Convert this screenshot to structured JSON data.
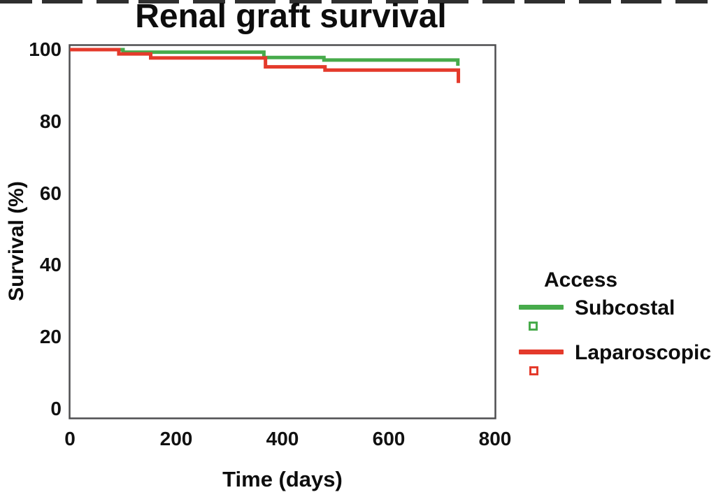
{
  "title": {
    "text": "Renal graft survival"
  },
  "axes": {
    "x": {
      "label": "Time (days)",
      "ticks": [
        0,
        200,
        400,
        600,
        800
      ],
      "range": [
        0,
        800
      ]
    },
    "y": {
      "label": "Survival (%)",
      "ticks": [
        0,
        20,
        40,
        60,
        80,
        100
      ],
      "range": [
        0,
        100
      ]
    }
  },
  "legend": {
    "title": "Access",
    "items": [
      {
        "label": "Subcostal",
        "color": "#47ab4b",
        "marker": "open-square"
      },
      {
        "label": "Laparoscopic",
        "color": "#e43a2b",
        "marker": "open-square"
      }
    ]
  },
  "chart_data": {
    "type": "line",
    "subtype": "kaplan-meier-step",
    "title": "Renal graft survival",
    "xlabel": "Time (days)",
    "ylabel": "Survival (%)",
    "xlim": [
      0,
      800
    ],
    "ylim": [
      0,
      100
    ],
    "grid": false,
    "legend_position": "right-outside",
    "x_units": "days",
    "y_units": "percent",
    "series": [
      {
        "name": "Subcostal",
        "color": "#47ab4b",
        "points_note": "step-down events: [time_days, survival_pct_after_event]; curve ends with terminal drop at last point",
        "points": [
          [
            0,
            100
          ],
          [
            100,
            99.3
          ],
          [
            365,
            97.8
          ],
          [
            478,
            97.1
          ],
          [
            730,
            95.5
          ]
        ]
      },
      {
        "name": "Laparoscopic",
        "color": "#e43a2b",
        "points_note": "step-down events: [time_days, survival_pct_after_event]; curve ends with terminal drop at last point",
        "points": [
          [
            0,
            100
          ],
          [
            92,
            98.8
          ],
          [
            152,
            97.7
          ],
          [
            368,
            95.2
          ],
          [
            480,
            94.3
          ],
          [
            731,
            90.7
          ]
        ]
      }
    ]
  }
}
